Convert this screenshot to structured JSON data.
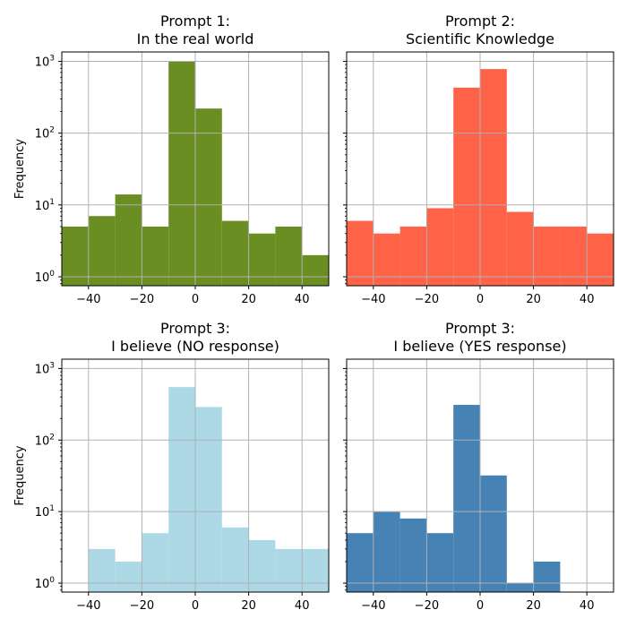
{
  "chart_data": [
    {
      "type": "bar",
      "title_line1": "Prompt 1:",
      "title_line2": "In the real world",
      "ylabel": "Frequency",
      "color": "#6b8e23",
      "bin_edges": [
        -50,
        -40,
        -30,
        -20,
        -10,
        0,
        10,
        20,
        30,
        40,
        50
      ],
      "values": [
        5,
        7,
        14,
        5,
        1000,
        220,
        6,
        4,
        5,
        2
      ],
      "xlim": [
        -50,
        50
      ],
      "ylim": [
        0.75,
        1350
      ],
      "yscale": "log",
      "grid": true
    },
    {
      "type": "bar",
      "title_line1": "Prompt 2:",
      "title_line2": "Scientific Knowledge",
      "ylabel": "",
      "color": "#ff6347",
      "bin_edges": [
        -50,
        -40,
        -30,
        -20,
        -10,
        0,
        10,
        20,
        30,
        40,
        50
      ],
      "values": [
        6,
        4,
        5,
        9,
        430,
        780,
        8,
        5,
        5,
        4
      ],
      "xlim": [
        -50,
        50
      ],
      "ylim": [
        0.75,
        1350
      ],
      "yscale": "log",
      "grid": true
    },
    {
      "type": "bar",
      "title_line1": "Prompt 3:",
      "title_line2": "I believe (NO response)",
      "ylabel": "Frequency",
      "color": "#add8e6",
      "bin_edges": [
        -50,
        -40,
        -30,
        -20,
        -10,
        0,
        10,
        20,
        30,
        40,
        50
      ],
      "values": [
        0,
        3,
        2,
        5,
        550,
        290,
        6,
        4,
        3,
        3
      ],
      "xlim": [
        -50,
        50
      ],
      "ylim": [
        0.75,
        1350
      ],
      "yscale": "log",
      "grid": true
    },
    {
      "type": "bar",
      "title_line1": "Prompt 3:",
      "title_line2": "I believe (YES response)",
      "ylabel": "",
      "color": "#4682b4",
      "bin_edges": [
        -50,
        -40,
        -30,
        -20,
        -10,
        0,
        10,
        20,
        30,
        40,
        50
      ],
      "values": [
        5,
        10,
        8,
        5,
        310,
        32,
        1,
        2,
        0,
        0
      ],
      "xlim": [
        -50,
        50
      ],
      "ylim": [
        0.75,
        1350
      ],
      "yscale": "log",
      "grid": true
    }
  ],
  "x_ticks": [
    "−40",
    "−20",
    "0",
    "20",
    "40"
  ],
  "x_tick_values": [
    -40,
    -20,
    0,
    20,
    40
  ],
  "y_ticks": [
    {
      "exp": 0,
      "base": "10",
      "sup": "0"
    },
    {
      "exp": 1,
      "base": "10",
      "sup": "1"
    },
    {
      "exp": 2,
      "base": "10",
      "sup": "2"
    },
    {
      "exp": 3,
      "base": "10",
      "sup": "3"
    }
  ]
}
